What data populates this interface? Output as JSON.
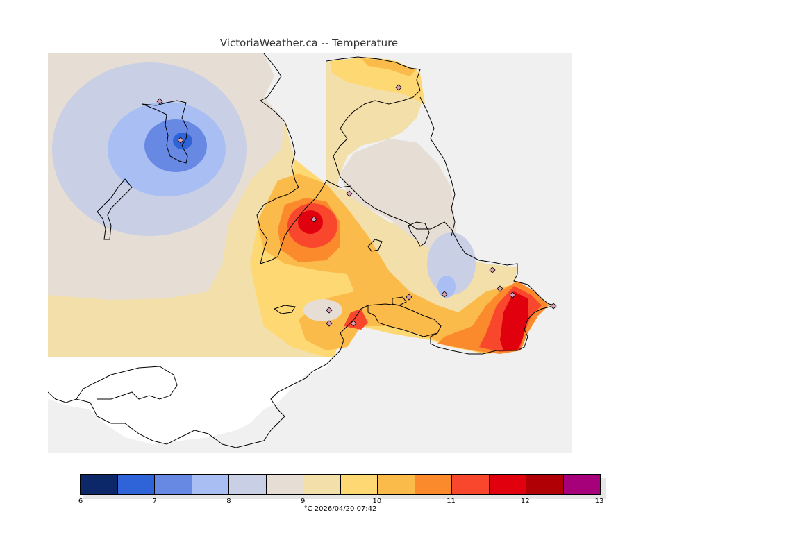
{
  "title": "VictoriaWeather.ca -- Temperature",
  "caption": "°C  2026/04/20 07:42",
  "colors": {
    "sea": "#f0f0f0",
    "land_outside": "#ffffff",
    "coast": "#000000",
    "station_fill": "#d7a0b8"
  },
  "legend": {
    "ticks": [
      "6",
      "7",
      "8",
      "9",
      "10",
      "11",
      "12",
      "13"
    ],
    "bins": [
      {
        "from": 6.0,
        "to": 6.5,
        "color": "#0d2869"
      },
      {
        "from": 6.5,
        "to": 7.0,
        "color": "#2f64d8"
      },
      {
        "from": 7.0,
        "to": 7.5,
        "color": "#6889e3"
      },
      {
        "from": 7.5,
        "to": 8.0,
        "color": "#a9bff3"
      },
      {
        "from": 8.0,
        "to": 8.5,
        "color": "#c9cfe4"
      },
      {
        "from": 8.5,
        "to": 9.0,
        "color": "#e6ddd4"
      },
      {
        "from": 9.0,
        "to": 9.5,
        "color": "#f3dfaa"
      },
      {
        "from": 9.5,
        "to": 10.0,
        "color": "#fdd873"
      },
      {
        "from": 10.0,
        "to": 10.5,
        "color": "#fbbb4a"
      },
      {
        "from": 10.5,
        "to": 11.0,
        "color": "#fb8a2c"
      },
      {
        "from": 11.0,
        "to": 11.5,
        "color": "#f8472d"
      },
      {
        "from": 11.5,
        "to": 12.0,
        "color": "#e0000e"
      },
      {
        "from": 12.0,
        "to": 12.5,
        "color": "#b00005"
      },
      {
        "from": 12.5,
        "to": 13.0,
        "color": "#a6007a"
      }
    ]
  }
}
